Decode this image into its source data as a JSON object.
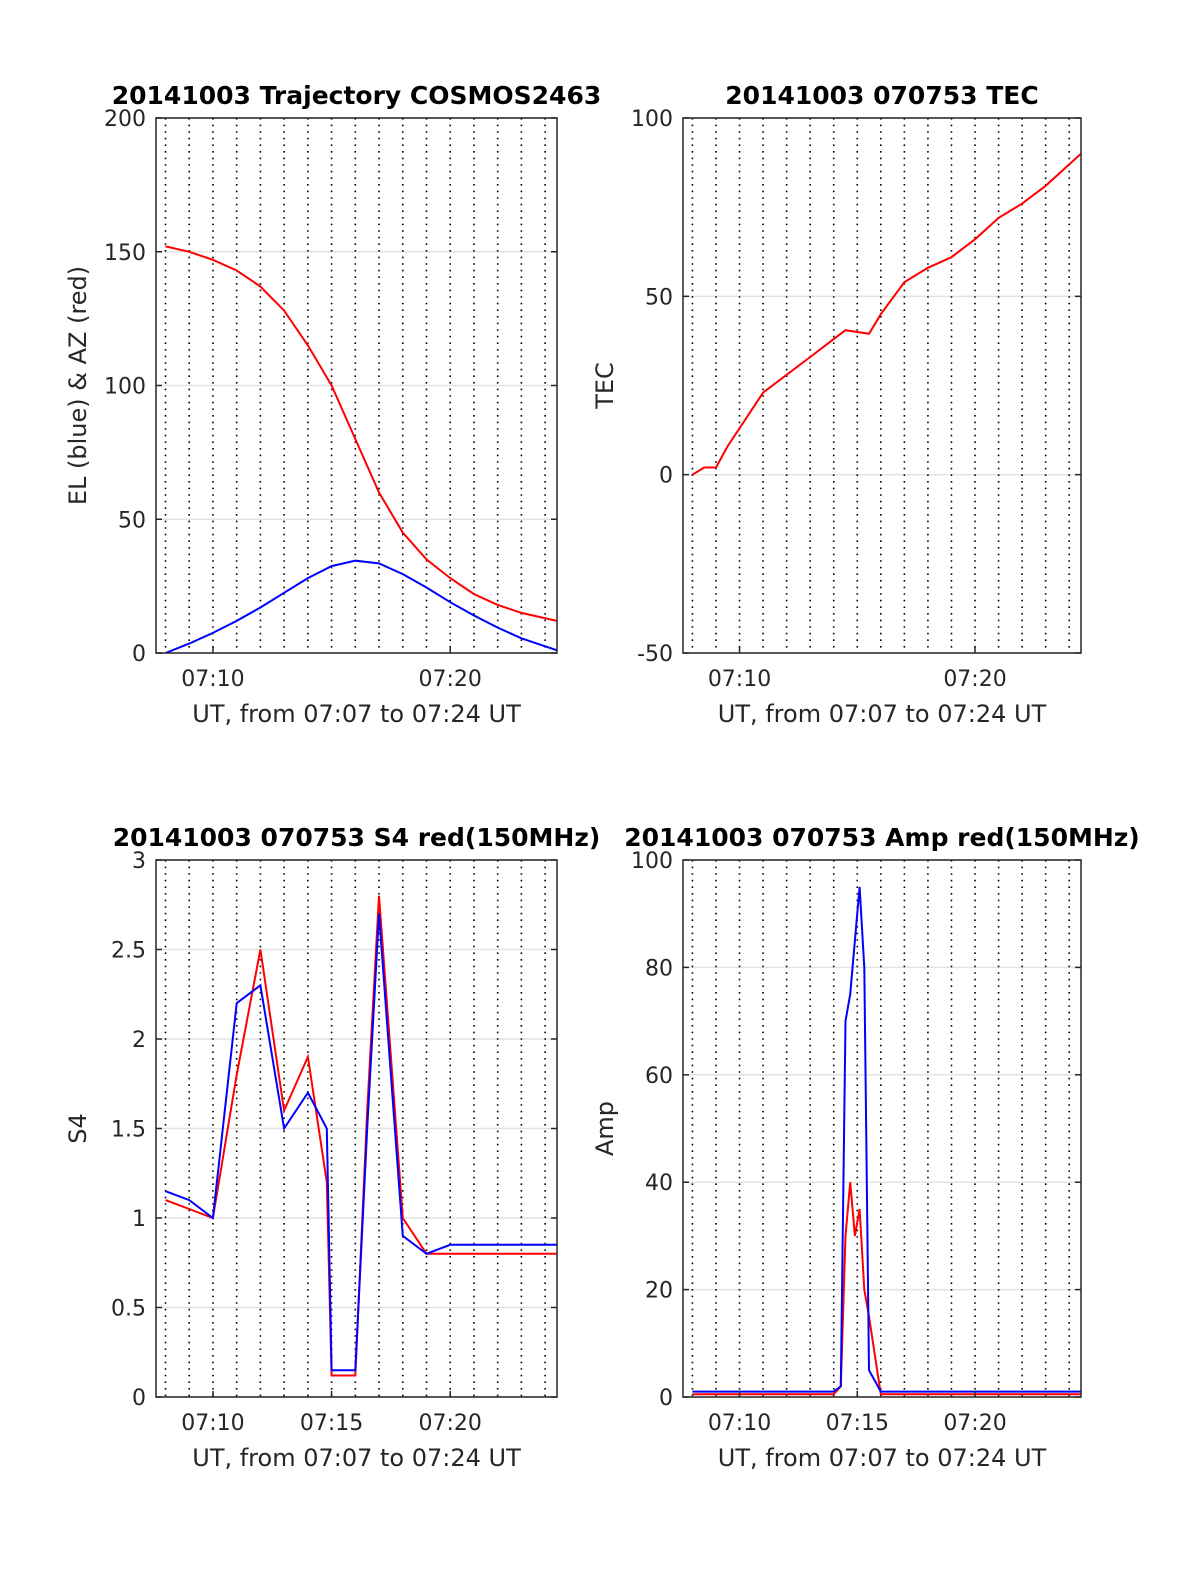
{
  "chart_data": [
    {
      "type": "line",
      "title": "20141003 Trajectory COSMOS2463",
      "xlabel": "UT, from 07:07 to 07:24 UT",
      "ylabel": "EL (blue) & AZ (red)",
      "xlim": [
        7.6,
        24.5
      ],
      "ylim": [
        0,
        200
      ],
      "xticks": [
        10,
        20
      ],
      "xtick_labels": [
        "07:10",
        "07:20"
      ],
      "yticks": [
        0,
        50,
        100,
        150,
        200
      ],
      "grid": true,
      "series": [
        {
          "color": "#ff0000",
          "x": [
            8.0,
            9.0,
            10.0,
            11.0,
            12.0,
            13.0,
            14.0,
            15.0,
            16.0,
            17.0,
            18.0,
            19.0,
            20.0,
            21.0,
            22.0,
            23.0,
            24.5
          ],
          "values": [
            152,
            150,
            147,
            143,
            137,
            128,
            115,
            100,
            80,
            60,
            45,
            35,
            28,
            22,
            18,
            15,
            12
          ]
        },
        {
          "color": "#0000ff",
          "x": [
            8.0,
            9.0,
            10.0,
            11.0,
            12.0,
            13.0,
            14.0,
            15.0,
            16.0,
            17.0,
            18.0,
            19.0,
            20.0,
            21.0,
            22.0,
            23.0,
            24.5
          ],
          "values": [
            0,
            3.5,
            7.5,
            12,
            17,
            22.5,
            28,
            32.5,
            34.5,
            33.5,
            29.5,
            24.5,
            19,
            14,
            9.5,
            5.5,
            1
          ]
        }
      ]
    },
    {
      "type": "line",
      "title": "20141003 070753 TEC",
      "xlabel": "UT, from 07:07 to 07:24 UT",
      "ylabel": "TEC",
      "xlim": [
        7.6,
        24.5
      ],
      "ylim": [
        -50,
        100
      ],
      "xticks": [
        10,
        20
      ],
      "xtick_labels": [
        "07:10",
        "07:20"
      ],
      "yticks": [
        -50,
        0,
        50,
        100
      ],
      "grid": true,
      "series": [
        {
          "color": "#ff0000",
          "x": [
            8.0,
            8.5,
            9.0,
            9.5,
            10.0,
            11.0,
            12.0,
            13.0,
            14.0,
            14.5,
            15.5,
            16.0,
            17.0,
            18.0,
            19.0,
            20.0,
            21.0,
            22.0,
            23.0,
            24.0,
            24.5
          ],
          "values": [
            0,
            2,
            2,
            8,
            13,
            23,
            28,
            33,
            38,
            40.5,
            39.5,
            45,
            54,
            58,
            61,
            66,
            72,
            76,
            81,
            87,
            90
          ]
        }
      ]
    },
    {
      "type": "line",
      "title": "20141003 070753 S4 red(150MHz)",
      "xlabel": "UT, from 07:07 to 07:24 UT",
      "ylabel": "S4",
      "xlim": [
        7.6,
        24.5
      ],
      "ylim": [
        0,
        3
      ],
      "xticks": [
        10,
        15,
        20
      ],
      "xtick_labels": [
        "07:10",
        "07:15",
        "07:20"
      ],
      "yticks": [
        0,
        0.5,
        1,
        1.5,
        2,
        2.5,
        3
      ],
      "ytick_labels": [
        "0",
        "0.5",
        "1",
        "1.5",
        "2",
        "2.5",
        "3"
      ],
      "grid": true,
      "series": [
        {
          "color": "#ff0000",
          "x": [
            8.0,
            9.0,
            10.0,
            11.0,
            12.0,
            13.0,
            14.0,
            14.8,
            15.0,
            16.0,
            16.5,
            17.0,
            18.0,
            19.0,
            20.0,
            21.0,
            22.0,
            23.0,
            24.0,
            24.5
          ],
          "values": [
            1.1,
            1.05,
            1.0,
            1.8,
            2.5,
            1.6,
            1.9,
            1.2,
            0.12,
            0.12,
            1.6,
            2.8,
            1.0,
            0.8,
            0.8,
            0.8,
            0.8,
            0.8,
            0.8,
            0.8
          ]
        },
        {
          "color": "#0000ff",
          "x": [
            8.0,
            9.0,
            10.0,
            11.0,
            12.0,
            13.0,
            14.0,
            14.8,
            15.0,
            16.0,
            16.5,
            17.0,
            18.0,
            19.0,
            20.0,
            21.0,
            22.0,
            23.0,
            24.0,
            24.5
          ],
          "values": [
            1.15,
            1.1,
            1.0,
            2.2,
            2.3,
            1.5,
            1.7,
            1.5,
            0.15,
            0.15,
            1.5,
            2.7,
            0.9,
            0.8,
            0.85,
            0.85,
            0.85,
            0.85,
            0.85,
            0.85
          ]
        }
      ]
    },
    {
      "type": "line",
      "title": "20141003 070753 Amp red(150MHz)",
      "xlabel": "UT, from 07:07 to 07:24 UT",
      "ylabel": "Amp",
      "xlim": [
        7.6,
        24.5
      ],
      "ylim": [
        0,
        100
      ],
      "xticks": [
        10,
        15,
        20
      ],
      "xtick_labels": [
        "07:10",
        "07:15",
        "07:20"
      ],
      "yticks": [
        0,
        20,
        40,
        60,
        80,
        100
      ],
      "grid": true,
      "series": [
        {
          "color": "#ff0000",
          "x": [
            8.0,
            14.0,
            14.3,
            14.5,
            14.7,
            14.9,
            15.1,
            15.3,
            15.5,
            16.0,
            24.5
          ],
          "values": [
            0.5,
            0.5,
            2,
            30,
            40,
            30,
            35,
            20,
            15,
            0.5,
            0.5
          ]
        },
        {
          "color": "#0000ff",
          "x": [
            8.0,
            14.0,
            14.3,
            14.5,
            14.7,
            14.9,
            15.1,
            15.3,
            15.5,
            16.0,
            24.5
          ],
          "values": [
            1,
            1,
            2,
            70,
            75,
            85,
            95,
            80,
            5,
            1,
            1
          ]
        }
      ]
    }
  ]
}
